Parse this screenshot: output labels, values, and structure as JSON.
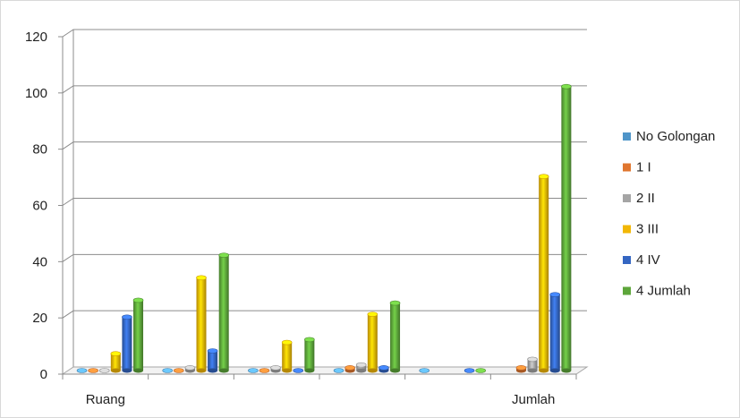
{
  "chart_data": {
    "type": "bar",
    "title": "",
    "xlabel": "",
    "ylabel": "",
    "ylim": [
      0,
      120
    ],
    "yticks": [
      0,
      20,
      40,
      60,
      80,
      100,
      120
    ],
    "grid": true,
    "legend_position": "right",
    "categories": [
      "Ruang",
      "",
      "",
      "",
      "",
      "Jumlah"
    ],
    "series": [
      {
        "name": "No Golongan",
        "color": "#4f95c9",
        "values": [
          0,
          0,
          0,
          0,
          0,
          null
        ]
      },
      {
        "name": "1 I",
        "color": "#e0762f",
        "values": [
          0,
          0,
          0,
          1,
          null,
          1
        ]
      },
      {
        "name": "2 II",
        "color": "#a5a5a5",
        "values": [
          0,
          1,
          1,
          2,
          null,
          4
        ]
      },
      {
        "name": "3 III",
        "color": "#f2b705",
        "values": [
          6,
          33,
          10,
          20,
          null,
          69
        ]
      },
      {
        "name": "4 IV",
        "color": "#3466c2",
        "values": [
          19,
          7,
          0,
          1,
          0,
          27
        ]
      },
      {
        "name": "4 Jumlah",
        "color": "#5da63a",
        "values": [
          25,
          41,
          11,
          24,
          0,
          101
        ]
      }
    ]
  }
}
